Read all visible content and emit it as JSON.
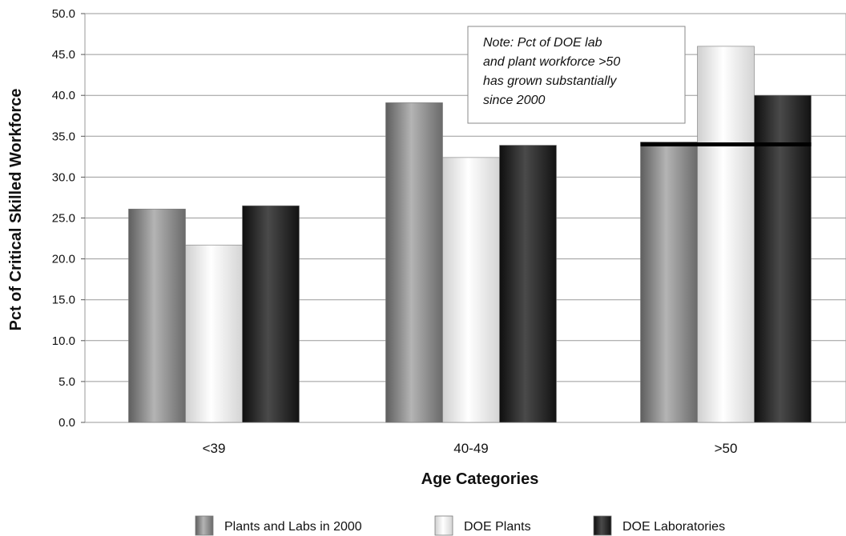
{
  "chart_data": {
    "type": "bar",
    "categories": [
      "<39",
      "40-49",
      ">50"
    ],
    "series": [
      {
        "name": "Plants and Labs in 2000",
        "values": [
          26.1,
          39.1,
          34.3
        ],
        "color": "#8a8a8a"
      },
      {
        "name": "DOE Plants",
        "values": [
          21.7,
          32.4,
          46.0
        ],
        "color": "#f2f2f2"
      },
      {
        "name": "DOE Laboratories",
        "values": [
          26.5,
          33.9,
          40.0
        ],
        "color": "#2a2a2a"
      }
    ],
    "xlabel": "Age Categories",
    "ylabel": "Pct of Critical Skilled Workforce",
    "ylim": [
      0,
      50
    ],
    "yticks": [
      "0.0",
      "5.0",
      "10.0",
      "15.0",
      "20.0",
      "25.0",
      "30.0",
      "35.0",
      "40.0",
      "45.0",
      "50.0"
    ],
    "grid": true,
    "legend": "bottom",
    "reference_line": {
      "value": 34.0,
      "category": ">50"
    },
    "annotation": [
      "Note: Pct of DOE lab",
      "and plant workforce >50",
      "has grown substantially",
      "since 2000"
    ]
  }
}
